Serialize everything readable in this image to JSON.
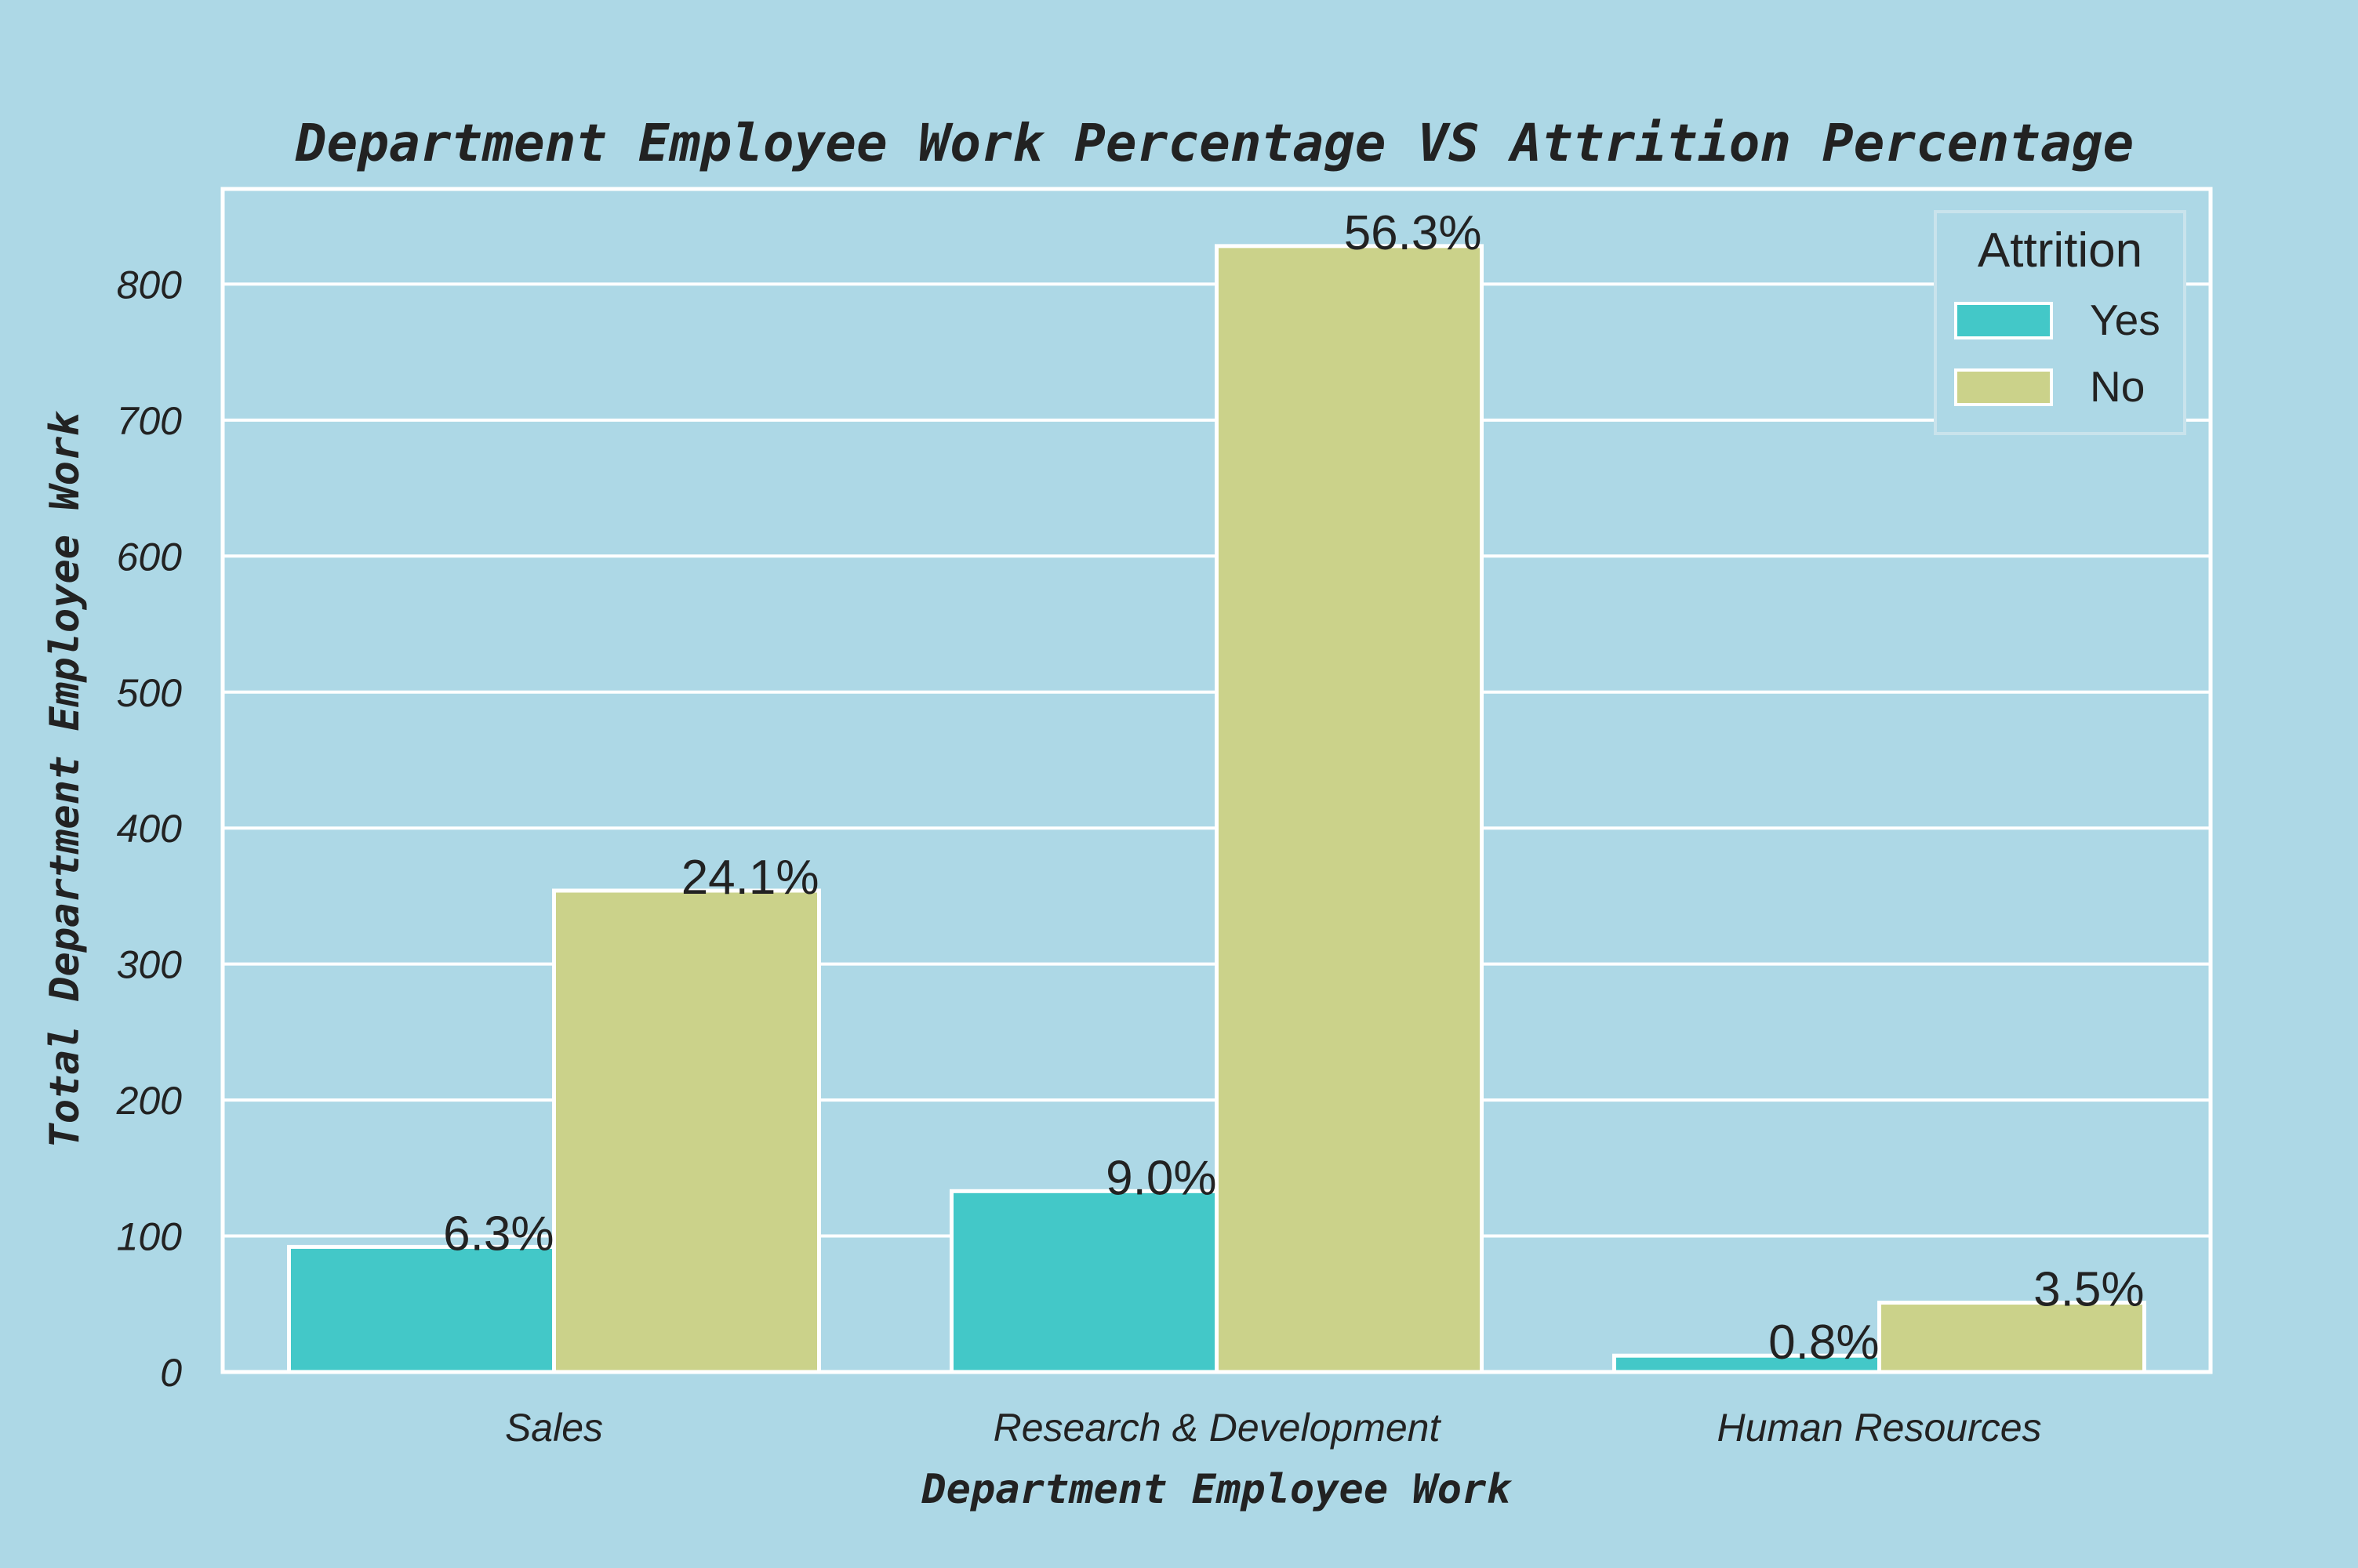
{
  "chart_data": {
    "type": "bar",
    "title": "Department Employee Work Percentage VS Attrition Percentage",
    "xlabel": "Department Employee Work",
    "ylabel": "Total Department Employee Work",
    "categories": [
      "Sales",
      "Research & Development",
      "Human Resources"
    ],
    "series": [
      {
        "name": "Yes",
        "color": "#43c8c8",
        "values": [
          92,
          133,
          12
        ],
        "labels": [
          "6.3%",
          "9.0%",
          "0.8%"
        ]
      },
      {
        "name": "No",
        "color": "#cbd28a",
        "values": [
          354,
          828,
          51
        ],
        "labels": [
          "24.1%",
          "56.3%",
          "3.5%"
        ]
      }
    ],
    "ylim": [
      0,
      870
    ],
    "yticks": [
      0,
      100,
      200,
      300,
      400,
      500,
      600,
      700,
      800
    ],
    "grid": true,
    "legend": {
      "title": "Attrition",
      "position": "top-right"
    },
    "colors": {
      "background": "#add8e6",
      "grid": "#ffffff",
      "text": "#222222"
    }
  }
}
